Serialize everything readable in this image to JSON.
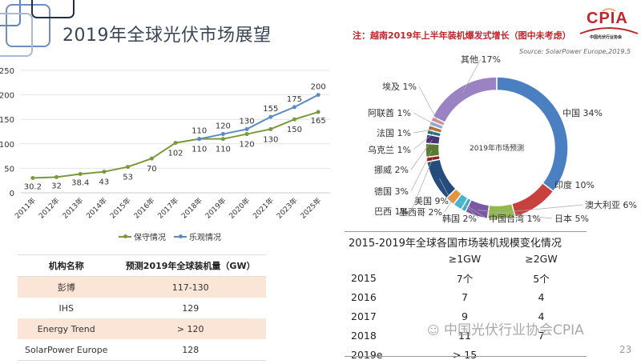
{
  "slide": {
    "title": "2019年全球光伏市场展望",
    "note": "注：越南2019年上半年装机爆发式增长（图中未考虑）",
    "source": "Source:  SolarPower Europe,2019.5",
    "logo_text": "CPIA",
    "logo_subtext": "中国光伏行业协会",
    "watermark": "中国光伏行业协会CPIA",
    "page_number": "23"
  },
  "chart_data": [
    {
      "type": "line",
      "title": "",
      "xlabel": "",
      "ylabel": "",
      "ylim": [
        0,
        250
      ],
      "yticks": [
        0,
        50,
        100,
        150,
        200,
        250
      ],
      "grid": true,
      "legend_position": "bottom",
      "categories": [
        "2011年",
        "2012年",
        "2013年",
        "2014年",
        "2015年",
        "2016年",
        "2017年",
        "2018年",
        "2019年",
        "2020年",
        "2021年",
        "2023年",
        "2025年"
      ],
      "series": [
        {
          "name": "保守情况",
          "color": "#7a9a3a",
          "values": [
            30.2,
            32,
            38.4,
            43,
            53,
            70,
            102,
            110,
            110,
            120,
            130,
            150,
            165
          ]
        },
        {
          "name": "乐观情况",
          "color": "#5b8bc4",
          "values": [
            null,
            null,
            null,
            null,
            null,
            null,
            null,
            110,
            120,
            130,
            155,
            175,
            200
          ]
        }
      ]
    },
    {
      "type": "pie",
      "donut": true,
      "center_label": "2019年市场预测",
      "slices": [
        {
          "label": "中国",
          "value": 34,
          "color": "#4a7fc1"
        },
        {
          "label": "印度",
          "value": 10,
          "color": "#c9413f"
        },
        {
          "label": "澳大利亚",
          "value": 6,
          "color": "#93b94e"
        },
        {
          "label": "日本",
          "value": 5,
          "color": "#7b57a6"
        },
        {
          "label": "中国台湾",
          "value": 1,
          "color": "#3fa9c4"
        },
        {
          "label": "韩国",
          "value": 2,
          "color": "#46b5d0"
        },
        {
          "label": "墨西哥",
          "value": 2,
          "color": "#e8923a"
        },
        {
          "label": "美国",
          "value": 9,
          "color": "#244d7d"
        },
        {
          "label": "巴西",
          "value": 1,
          "color": "#8c1f22"
        },
        {
          "label": "德国",
          "value": 3,
          "color": "#5b7a34"
        },
        {
          "label": "挪威",
          "value": 2,
          "color": "#4a3375"
        },
        {
          "label": "乌克兰",
          "value": 1,
          "color": "#237485"
        },
        {
          "label": "法国",
          "value": 1,
          "color": "#b86a28"
        },
        {
          "label": "阿联酋",
          "value": 1,
          "color": "#8fa8d4"
        },
        {
          "label": "埃及",
          "value": 1,
          "color": "#d48f95"
        },
        {
          "label": "其他",
          "value": 17,
          "color": "#9b82c2"
        }
      ],
      "extra_slice": {
        "label": "埃及",
        "value": 1,
        "color": "#bdd39a"
      },
      "display_labels": [
        "中国 34%",
        "印度 10%",
        "澳大利亚 6%",
        "日本 5%",
        "中国台湾 1%",
        "韩国 2%",
        "墨西哥 2%",
        "美国 9%",
        "巴西 1%",
        "德国 3%",
        "挪威 2%",
        "乌克兰 1%",
        "法国 1%",
        "阿联酋 1%",
        "埃及 1%",
        "其他 17%"
      ]
    }
  ],
  "forecast_table": {
    "headers": [
      "机构名称",
      "预测2019年全球装机量（GW）"
    ],
    "rows": [
      [
        "彭博",
        "117-130"
      ],
      [
        "IHS",
        "129"
      ],
      [
        "Energy Trend",
        "> 120"
      ],
      [
        "SolarPower Europe",
        "128"
      ]
    ]
  },
  "market_table": {
    "title": "2015-2019年全球各国市场装机规模变化情况",
    "headers": [
      "",
      "≥1GW",
      "≥2GW"
    ],
    "rows": [
      [
        "2015",
        "7个",
        "5个"
      ],
      [
        "2016",
        "7",
        "4"
      ],
      [
        "2017",
        "9",
        "4"
      ],
      [
        "2018",
        "11",
        "7"
      ],
      [
        "2019e",
        "> 15",
        ""
      ]
    ]
  }
}
